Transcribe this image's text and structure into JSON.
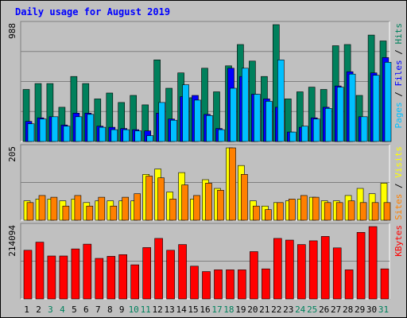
{
  "chart_data": {
    "type": "bar",
    "title": "Daily usage for August 2019",
    "days": [
      "1",
      "2",
      "3",
      "4",
      "5",
      "6",
      "7",
      "8",
      "9",
      "10",
      "11",
      "12",
      "13",
      "14",
      "15",
      "16",
      "17",
      "18",
      "19",
      "20",
      "21",
      "22",
      "23",
      "24",
      "25",
      "26",
      "27",
      "28",
      "29",
      "30",
      "31"
    ],
    "weekend_days": [
      "3",
      "4",
      "10",
      "11",
      "17",
      "18",
      "24",
      "25",
      "31"
    ],
    "colors": {
      "background": "#c0c0c0",
      "hits": "#00805c",
      "files": "#0000ff",
      "pages": "#00c0ff",
      "visits": "#ffff00",
      "sites": "#ff8000",
      "kbytes": "#ff0000",
      "title": "#0000ff",
      "weekday_label": "#000000",
      "weekend_label": "#00805c"
    },
    "panels": [
      {
        "id": "hits_files_pages",
        "max_label": "988",
        "ymax": 988,
        "right_labels": [
          {
            "text": "Pages",
            "color": "#00c0ff"
          },
          {
            "text": " / ",
            "color": "#000000"
          },
          {
            "text": "Files",
            "color": "#0000ff"
          },
          {
            "text": " / ",
            "color": "#000000"
          },
          {
            "text": "Hits",
            "color": "#00805c"
          }
        ],
        "series": [
          {
            "name": "Hits",
            "color": "#00805c",
            "values": [
              440,
              490,
              490,
              290,
              550,
              490,
              360,
              410,
              330,
              390,
              310,
              690,
              450,
              580,
              370,
              620,
              420,
              640,
              820,
              680,
              550,
              988,
              360,
              420,
              460,
              440,
              810,
              820,
              390,
              900,
              850
            ]
          },
          {
            "name": "Files",
            "color": "#0000ff",
            "values": [
              170,
              200,
              210,
              140,
              240,
              240,
              130,
              120,
              110,
              100,
              90,
              240,
              190,
              380,
              390,
              230,
              110,
              620,
              550,
              400,
              360,
              290,
              80,
              120,
              200,
              290,
              470,
              590,
              210,
              580,
              710
            ]
          },
          {
            "name": "Pages",
            "color": "#00c0ff",
            "values": [
              150,
              190,
              210,
              130,
              210,
              230,
              120,
              100,
              100,
              90,
              50,
              330,
              180,
              480,
              350,
              220,
              100,
              450,
              620,
              400,
              340,
              690,
              80,
              130,
              190,
              280,
              460,
              570,
              210,
              560,
              670
            ]
          }
        ]
      },
      {
        "id": "visits_sites",
        "max_label": "205",
        "ymax": 205,
        "right_labels": [
          {
            "text": "Sites",
            "color": "#ff8000"
          },
          {
            "text": " / ",
            "color": "#000000"
          },
          {
            "text": "Visits",
            "color": "#ffff00"
          }
        ],
        "series": [
          {
            "name": "Visits",
            "color": "#ffff00",
            "values": [
              55,
              60,
              60,
              55,
              60,
              50,
              55,
              55,
              55,
              55,
              130,
              145,
              80,
              135,
              60,
              115,
              90,
              205,
              155,
              55,
              40,
              50,
              55,
              60,
              65,
              55,
              55,
              70,
              90,
              75,
              105
            ]
          },
          {
            "name": "Sites",
            "color": "#ff8000",
            "values": [
              50,
              70,
              65,
              40,
              70,
              40,
              65,
              40,
              65,
              75,
              125,
              120,
              60,
              100,
              70,
              105,
              85,
              205,
              130,
              40,
              30,
              50,
              60,
              70,
              65,
              50,
              50,
              55,
              50,
              50,
              50
            ]
          }
        ]
      },
      {
        "id": "kbytes",
        "max_label": "214094",
        "ymax": 214094,
        "right_labels": [
          {
            "text": "KBytes",
            "color": "#ff0000"
          }
        ],
        "series": [
          {
            "name": "KBytes",
            "color": "#ff0000",
            "values": [
              144000,
              168000,
              127000,
              127000,
              148000,
              162000,
              120000,
              126000,
              131000,
              101000,
              152000,
              179000,
              144000,
              161000,
              97000,
              81000,
              86000,
              86000,
              86000,
              140000,
              89000,
              179000,
              174000,
              161000,
              172000,
              185000,
              151000,
              86000,
              197000,
              214094,
              89000
            ]
          }
        ]
      }
    ]
  }
}
